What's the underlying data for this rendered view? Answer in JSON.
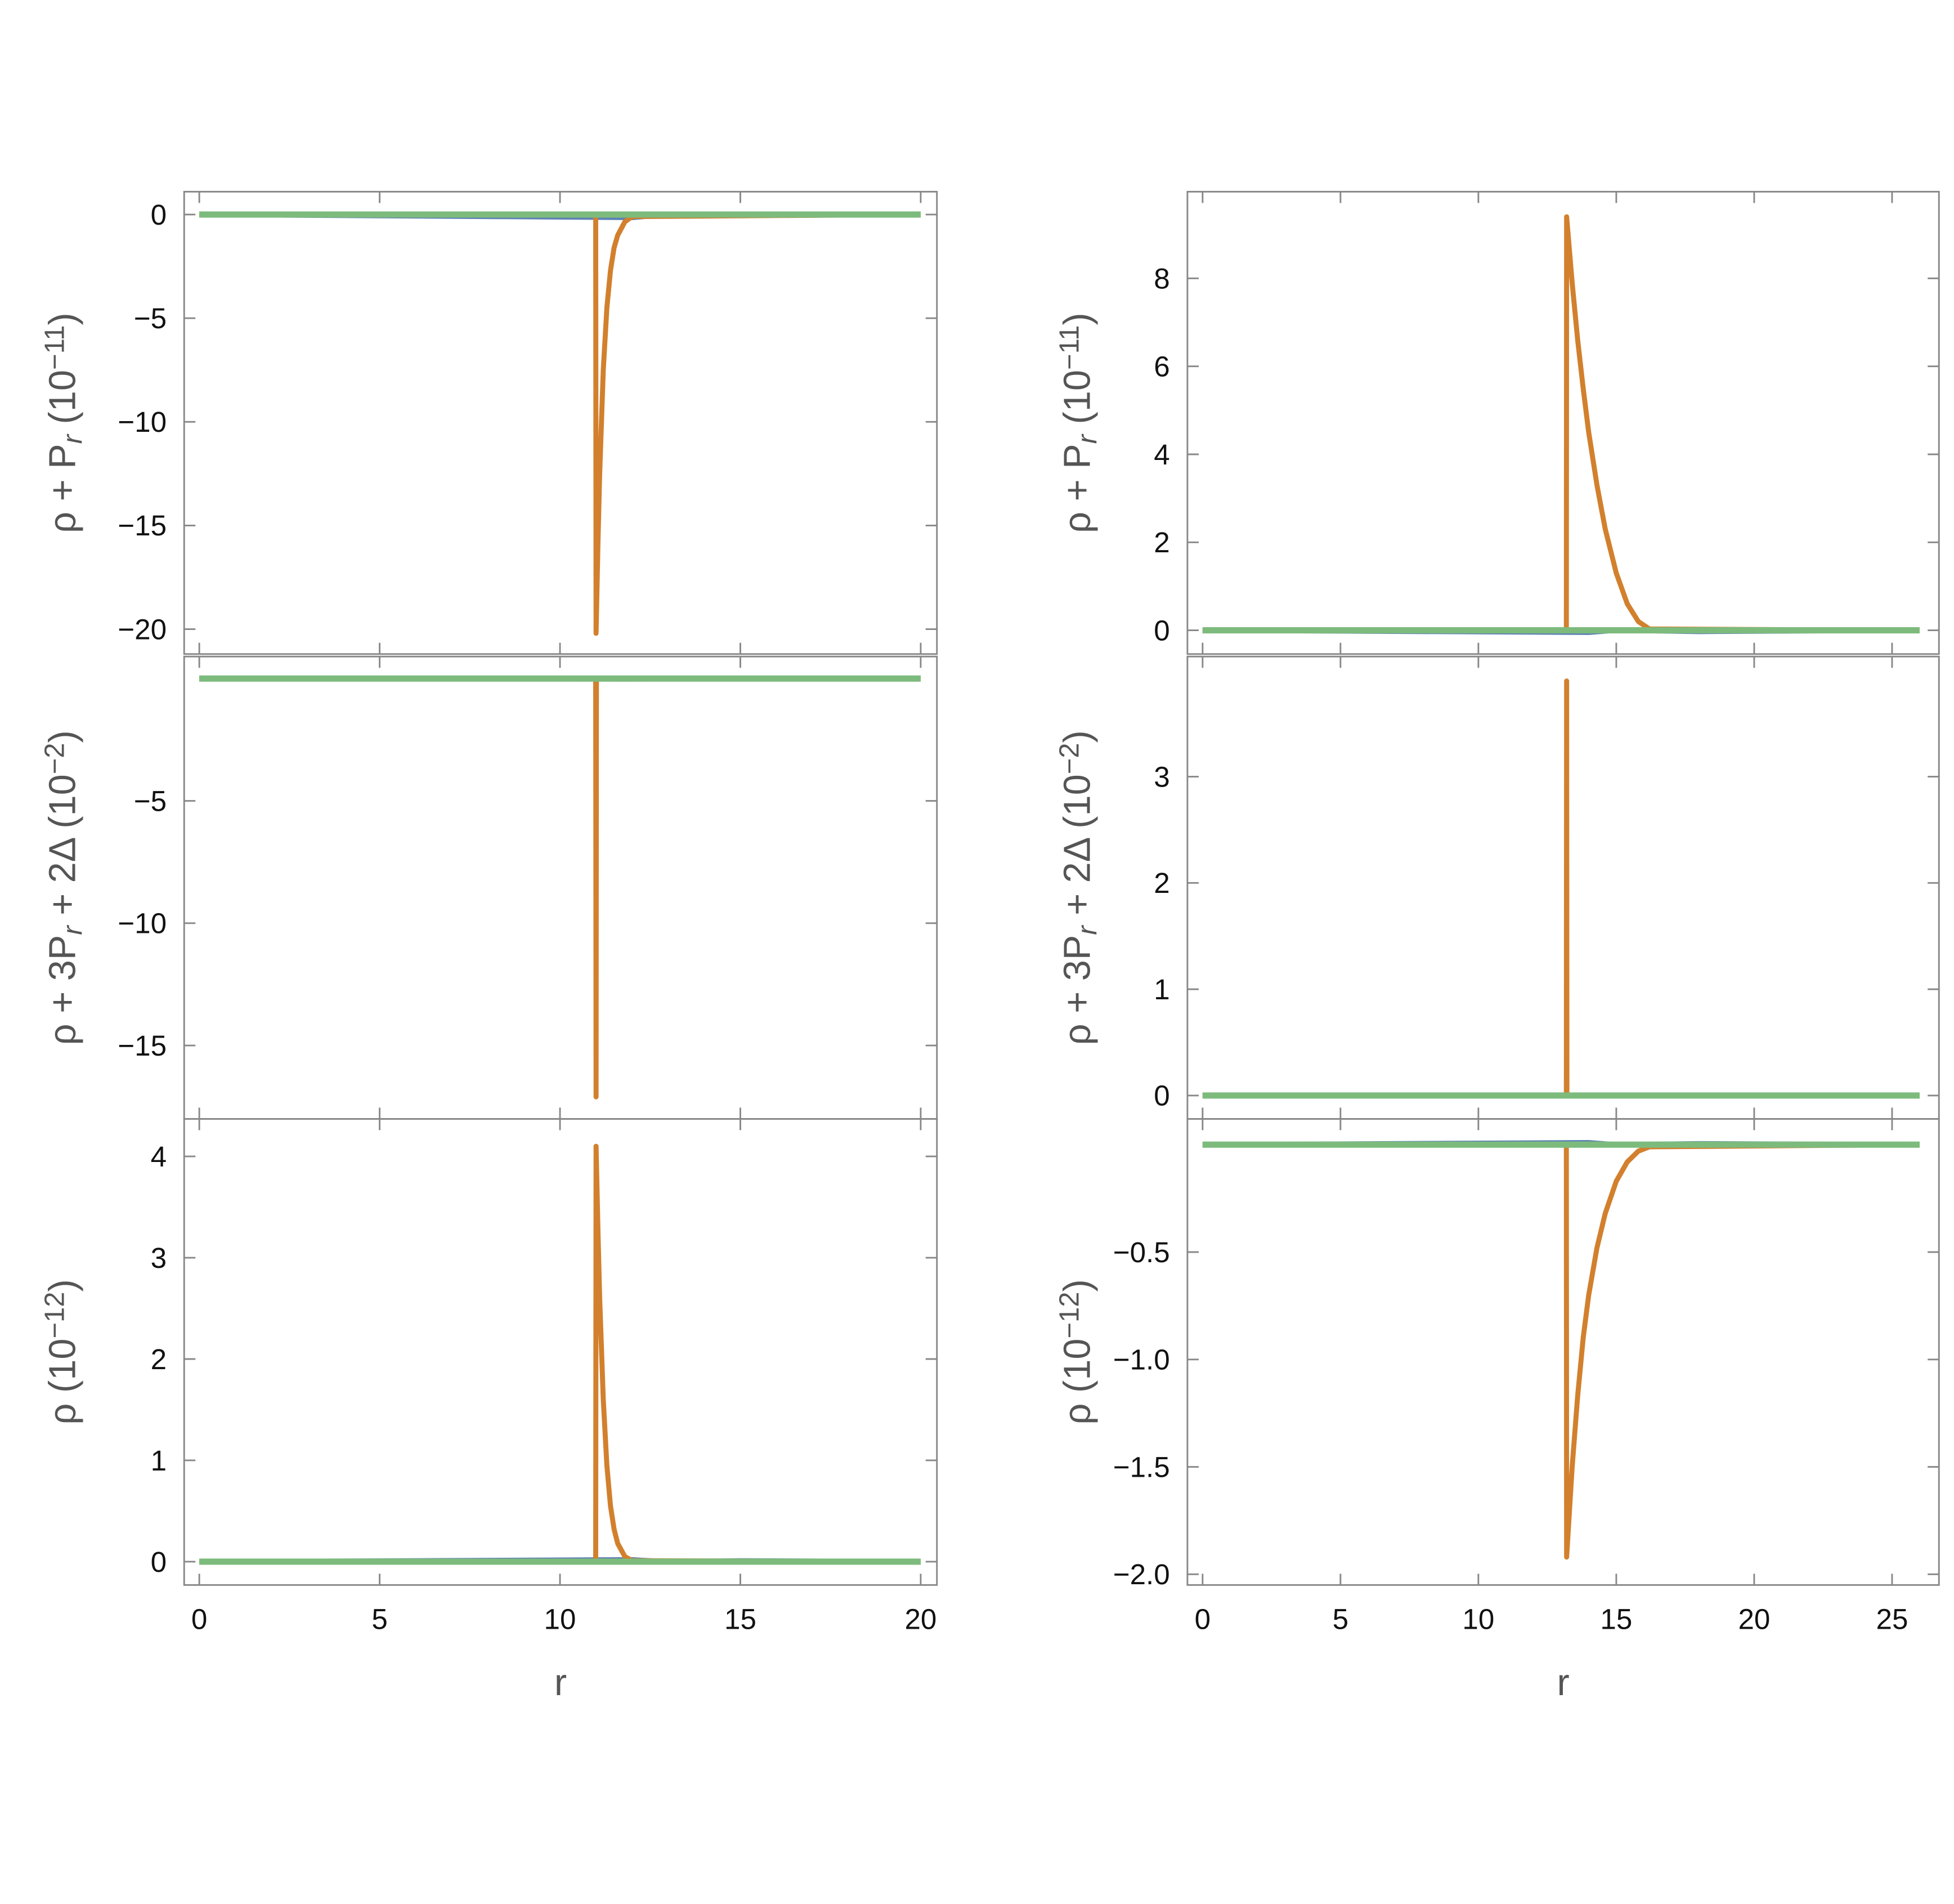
{
  "chart_data": [
    {
      "type": "line",
      "ylabel": [
        {
          "text": "ρ + P"
        },
        {
          "text": "r",
          "sub": true
        },
        {
          "text": "  (10"
        },
        {
          "text": "−11",
          "sup": true
        },
        {
          "text": ")"
        }
      ],
      "xlim": [
        -0.42,
        20.45
      ],
      "ylim": [
        -21.2,
        1.1
      ],
      "xticks": [
        0,
        5,
        10,
        15,
        20
      ],
      "show_xtick_labels": false,
      "yticks": [
        0,
        {
          "value": -5,
          "label": "−5"
        },
        {
          "value": -10,
          "label": "−10"
        },
        {
          "value": -15,
          "label": "−15"
        },
        {
          "value": -20,
          "label": "−20"
        }
      ],
      "series": [
        {
          "color": "#5e81b5",
          "x": [
            0,
            12,
            13,
            15,
            20
          ],
          "values": [
            0,
            -0.15,
            0,
            -0.05,
            0
          ]
        },
        {
          "color": "#d2802d",
          "x": [
            0,
            10.99,
            11.0,
            11.05,
            11.1,
            11.2,
            11.3,
            11.4,
            11.5,
            11.6,
            11.8,
            12.0,
            20
          ],
          "values": [
            0,
            0,
            -20.2,
            -16,
            -12.5,
            -7.5,
            -4.5,
            -2.7,
            -1.6,
            -1.0,
            -0.35,
            -0.1,
            0
          ]
        },
        {
          "color": "#7dbb7d",
          "x": [
            0,
            20
          ],
          "values": [
            0,
            0
          ]
        }
      ]
    },
    {
      "type": "line",
      "ylabel": [
        {
          "text": "ρ + P"
        },
        {
          "text": "r",
          "sub": true
        },
        {
          "text": "  (10"
        },
        {
          "text": "−11",
          "sup": true
        },
        {
          "text": ")"
        }
      ],
      "xlim": [
        -0.55,
        26.7
      ],
      "ylim": [
        -0.54,
        9.97
      ],
      "xticks": [
        0,
        5,
        10,
        15,
        20,
        25
      ],
      "show_xtick_labels": false,
      "yticks": [
        0,
        2,
        4,
        6,
        8
      ],
      "series": [
        {
          "color": "#5e81b5",
          "x": [
            0,
            14,
            15,
            18,
            26
          ],
          "values": [
            0,
            -0.05,
            0,
            -0.03,
            0
          ]
        },
        {
          "color": "#d2802d",
          "x": [
            0,
            13.19,
            13.2,
            13.4,
            13.6,
            13.8,
            14.0,
            14.3,
            14.6,
            15.0,
            15.4,
            15.8,
            16.2,
            26
          ],
          "values": [
            0,
            0,
            9.4,
            7.9,
            6.6,
            5.5,
            4.5,
            3.3,
            2.3,
            1.3,
            0.6,
            0.2,
            0.03,
            0
          ]
        },
        {
          "color": "#7dbb7d",
          "x": [
            0,
            26
          ],
          "values": [
            0,
            0
          ]
        }
      ]
    },
    {
      "type": "line",
      "ylabel": [
        {
          "text": "ρ + 3P"
        },
        {
          "text": "r",
          "sub": true
        },
        {
          "text": " + 2Δ  (10"
        },
        {
          "text": "−2",
          "sup": true
        },
        {
          "text": ")"
        }
      ],
      "xlim": [
        -0.42,
        20.45
      ],
      "ylim": [
        -18.0,
        0.9
      ],
      "xticks": [
        0,
        5,
        10,
        15,
        20
      ],
      "show_xtick_labels": false,
      "yticks": [
        {
          "value": -5,
          "label": "−5"
        },
        {
          "value": -10,
          "label": "−10"
        },
        {
          "value": -15,
          "label": "−15"
        }
      ],
      "series": [
        {
          "color": "#5e81b5",
          "x": [
            0,
            12,
            15,
            20
          ],
          "values": [
            0,
            -0.02,
            0,
            0
          ]
        },
        {
          "color": "#d2802d",
          "x": [
            0,
            10.99,
            11.0,
            11.01,
            20
          ],
          "values": [
            0,
            0,
            -17.1,
            0,
            0
          ]
        },
        {
          "color": "#7dbb7d",
          "x": [
            0,
            20
          ],
          "values": [
            0,
            0
          ]
        }
      ]
    },
    {
      "type": "line",
      "ylabel": [
        {
          "text": "ρ + 3P"
        },
        {
          "text": "r",
          "sub": true
        },
        {
          "text": " + 2Δ  (10"
        },
        {
          "text": "−2",
          "sup": true
        },
        {
          "text": ")"
        }
      ],
      "xlim": [
        -0.55,
        26.7
      ],
      "ylim": [
        -0.22,
        4.13
      ],
      "xticks": [
        0,
        5,
        10,
        15,
        20,
        25
      ],
      "show_xtick_labels": false,
      "yticks": [
        0,
        1,
        2,
        3
      ],
      "series": [
        {
          "color": "#5e81b5",
          "x": [
            0,
            14,
            18,
            26
          ],
          "values": [
            0,
            -0.005,
            0,
            0
          ]
        },
        {
          "color": "#d2802d",
          "x": [
            0,
            13.19,
            13.2,
            13.21,
            26
          ],
          "values": [
            0,
            0,
            3.9,
            0,
            0
          ]
        },
        {
          "color": "#7dbb7d",
          "x": [
            0,
            26
          ],
          "values": [
            0,
            0
          ]
        }
      ]
    },
    {
      "type": "line",
      "ylabel": [
        {
          "text": "ρ (10"
        },
        {
          "text": "−12",
          "sup": true
        },
        {
          "text": ")"
        }
      ],
      "xlabel": "r",
      "xlim": [
        -0.42,
        20.45
      ],
      "ylim": [
        -0.23,
        4.37
      ],
      "xticks": [
        0,
        5,
        10,
        15,
        20
      ],
      "show_xtick_labels": true,
      "yticks": [
        0,
        1,
        2,
        3,
        4
      ],
      "series": [
        {
          "color": "#5e81b5",
          "x": [
            0,
            12,
            13,
            15,
            20
          ],
          "values": [
            0,
            0.02,
            0,
            0.01,
            0
          ]
        },
        {
          "color": "#d2802d",
          "x": [
            0,
            10.99,
            11.0,
            11.05,
            11.1,
            11.2,
            11.3,
            11.4,
            11.5,
            11.6,
            11.8,
            12.0,
            20
          ],
          "values": [
            0,
            0,
            4.1,
            3.3,
            2.6,
            1.6,
            0.95,
            0.55,
            0.32,
            0.18,
            0.05,
            0.01,
            0
          ]
        },
        {
          "color": "#7dbb7d",
          "x": [
            0,
            20
          ],
          "values": [
            0,
            0
          ]
        }
      ]
    },
    {
      "type": "line",
      "ylabel": [
        {
          "text": "ρ (10"
        },
        {
          "text": "−12",
          "sup": true
        },
        {
          "text": ")"
        }
      ],
      "xlabel": "r",
      "xlim": [
        -0.55,
        26.7
      ],
      "ylim": [
        -2.05,
        0.12
      ],
      "xticks": [
        0,
        5,
        10,
        15,
        20,
        25
      ],
      "show_xtick_labels": true,
      "yticks": [
        {
          "value": -0.5,
          "label": "−0.5"
        },
        {
          "value": -1,
          "label": "−1.0"
        },
        {
          "value": -1.5,
          "label": "−1.5"
        },
        {
          "value": -2,
          "label": "−2.0"
        }
      ],
      "series": [
        {
          "color": "#5e81b5",
          "x": [
            0,
            14,
            15,
            18,
            26
          ],
          "values": [
            0,
            0.01,
            0,
            0.005,
            0
          ]
        },
        {
          "color": "#d2802d",
          "x": [
            0,
            13.19,
            13.2,
            13.4,
            13.6,
            13.8,
            14.0,
            14.3,
            14.6,
            15.0,
            15.4,
            15.8,
            16.2,
            26
          ],
          "values": [
            0,
            0,
            -1.92,
            -1.5,
            -1.17,
            -0.9,
            -0.7,
            -0.48,
            -0.32,
            -0.17,
            -0.08,
            -0.03,
            -0.01,
            0
          ]
        },
        {
          "color": "#7dbb7d",
          "x": [
            0,
            26
          ],
          "values": [
            0,
            0
          ]
        }
      ]
    }
  ]
}
